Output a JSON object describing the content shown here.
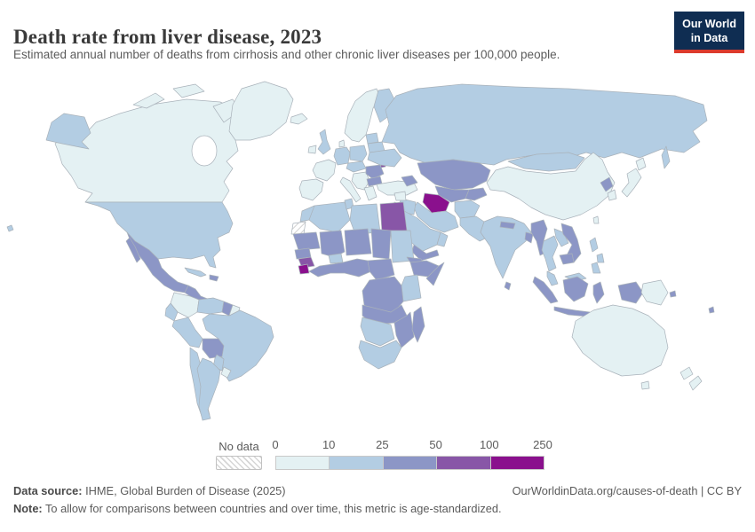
{
  "header": {
    "title": "Death rate from liver disease, 2023",
    "subtitle": "Estimated annual number of deaths from cirrhosis and other chronic liver diseases per 100,000 people.",
    "logo": {
      "line1": "Our World",
      "line2": "in Data",
      "bg_color": "#0f2d52",
      "accent_color": "#dc3a2c"
    }
  },
  "legend": {
    "no_data_label": "No data",
    "ticks": [
      "0",
      "10",
      "25",
      "50",
      "100",
      "250"
    ]
  },
  "footer": {
    "source_label": "Data source:",
    "source_text": " IHME, Global Burden of Disease (2025)",
    "rights": "OurWorldinData.org/causes-of-death | CC BY",
    "note_label": "Note:",
    "note_text": " To allow for comparisons between countries and over time, this metric is age-standardized."
  },
  "chart_data": {
    "type": "choropleth",
    "title": "Death rate from liver disease, 2023",
    "unit": "deaths per 100,000 people",
    "legend_position": "bottom",
    "bins": [
      {
        "id": "b0",
        "range": "0-10",
        "color": "#e4f1f3"
      },
      {
        "id": "b1",
        "range": "10-25",
        "color": "#b3cde3"
      },
      {
        "id": "b2",
        "range": "25-50",
        "color": "#8c96c6"
      },
      {
        "id": "b3",
        "range": "50-100",
        "color": "#8856a7"
      },
      {
        "id": "b4",
        "range": "100-250",
        "color": "#8a108d"
      }
    ],
    "regions": {
      "canada": "b0",
      "greenland": "b0",
      "alaska": "b1",
      "usa": "b1",
      "hawaii": "b1",
      "mexico": "b2",
      "central-america": "b2",
      "cuba": "b1",
      "hispaniola": "b2",
      "colombia": "b0",
      "venezuela": "b1",
      "guyana": "b2",
      "suriname": "b0",
      "brazil": "b1",
      "ecuador": "b1",
      "peru": "b1",
      "bolivia": "b2",
      "paraguay": "b1",
      "chile": "b1",
      "argentina": "b1",
      "uruguay": "b0",
      "iceland": "b0",
      "ireland": "b0",
      "uk": "b1",
      "scandinavia": "b0",
      "finland": "b1",
      "denmark": "b0",
      "france": "b0",
      "iberia": "b0",
      "italy": "b0",
      "germany": "b1",
      "poland": "b1",
      "central-europe": "b1",
      "balkans": "b0",
      "romania": "b2",
      "moldova": "b3",
      "bulgaria": "b2",
      "greece": "b0",
      "baltics": "b1",
      "belarus": "b1",
      "ukraine": "b1",
      "turkey": "b0",
      "russia": "b1",
      "kazakhstan": "b2",
      "uzbekistan": "b2",
      "kyrgyzstan-tajikistan": "b2",
      "turkmenistan": "b4",
      "caucasus": "b2",
      "iran": "b1",
      "iraq": "b1",
      "syria": "b0",
      "jordan-israel": "b0",
      "saudi-arabia": "b1",
      "yemen": "b2",
      "oman": "b1",
      "afghanistan": "b1",
      "pakistan": "b1",
      "india": "b1",
      "nepal": "b2",
      "bangladesh": "b2",
      "sri-lanka": "b2",
      "china": "b0",
      "mongolia": "b1",
      "north-korea": "b2",
      "south-korea": "b0",
      "japan": "b0",
      "taiwan": "b0",
      "myanmar": "b2",
      "thailand": "b1",
      "laos": "b1",
      "vietnam": "b2",
      "cambodia": "b2",
      "malaysia": "b1",
      "indonesia": "b2",
      "philippines": "b1",
      "papua-new-guinea": "b0",
      "solomon-islands": "b2",
      "fiji": "b2",
      "australia": "b0",
      "new-zealand": "b0",
      "morocco": "b1",
      "algeria": "b1",
      "tunisia": "b1",
      "libya": "b1",
      "egypt": "b3",
      "western-sahara": "no-data",
      "mauritania": "b2",
      "mali": "b2",
      "burkina-faso": "b1",
      "niger": "b2",
      "chad": "b2",
      "sudan": "b1",
      "senegal": "b2",
      "guinea": "b3",
      "sierra-leone": "b4",
      "west-africa-coast": "b2",
      "cameroon-car": "b2",
      "eritrea-djibouti": "b2",
      "ethiopia": "b2",
      "somalia": "b2",
      "kenya-tanzania": "b1",
      "drc-central-africa": "b2",
      "angola-zambia": "b2",
      "mozambique-zimbabwe": "b2",
      "madagascar": "b2",
      "namibia-botswana": "b1",
      "south-africa": "b1"
    }
  }
}
